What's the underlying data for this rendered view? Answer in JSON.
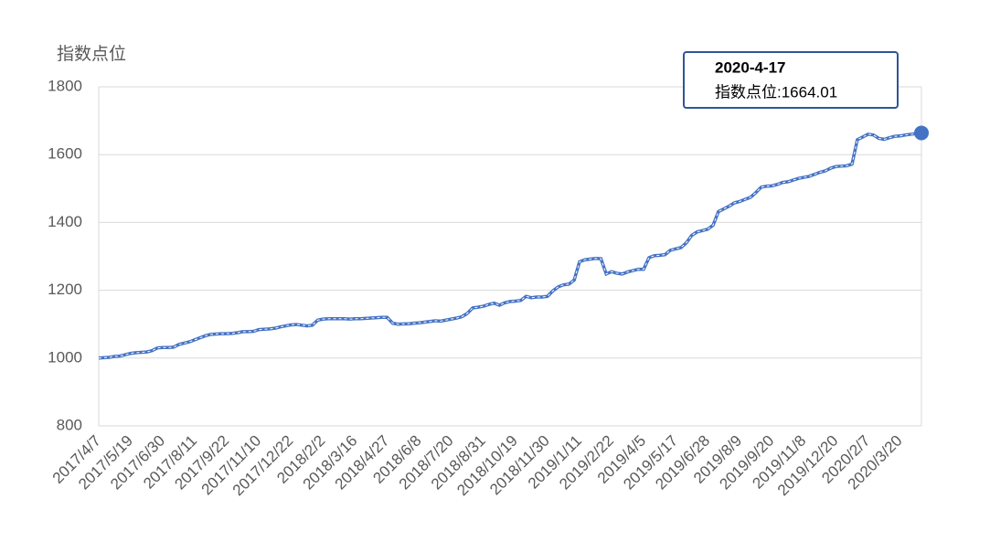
{
  "chart_data": {
    "type": "line",
    "y_axis_label": "指数点位",
    "categories": [
      "2017/4/7",
      null,
      null,
      null,
      null,
      null,
      "2017/5/19",
      null,
      null,
      null,
      null,
      null,
      "2017/6/30",
      null,
      null,
      null,
      null,
      null,
      "2017/8/11",
      null,
      null,
      null,
      null,
      null,
      "2017/9/22",
      null,
      null,
      null,
      null,
      null,
      "2017/11/10",
      null,
      null,
      null,
      null,
      null,
      "2017/12/22",
      null,
      null,
      null,
      null,
      null,
      "2018/2/2",
      null,
      null,
      null,
      null,
      null,
      "2018/3/16",
      null,
      null,
      null,
      null,
      null,
      "2018/4/27",
      null,
      null,
      null,
      null,
      null,
      "2018/6/8",
      null,
      null,
      null,
      null,
      null,
      "2018/7/20",
      null,
      null,
      null,
      null,
      null,
      "2018/8/31",
      null,
      null,
      null,
      null,
      null,
      "2018/10/19",
      null,
      null,
      null,
      null,
      null,
      "2018/11/30",
      null,
      null,
      null,
      null,
      null,
      "2019/1/11",
      null,
      null,
      null,
      null,
      null,
      "2019/2/22",
      null,
      null,
      null,
      null,
      null,
      "2019/4/5",
      null,
      null,
      null,
      null,
      null,
      "2019/5/17",
      null,
      null,
      null,
      null,
      null,
      "2019/6/28",
      null,
      null,
      null,
      null,
      null,
      "2019/8/9",
      null,
      null,
      null,
      null,
      null,
      "2019/9/20",
      null,
      null,
      null,
      null,
      null,
      "2019/11/8",
      null,
      null,
      null,
      null,
      null,
      "2019/12/20",
      null,
      null,
      null,
      null,
      null,
      "2020/2/7",
      null,
      null,
      null,
      null,
      null,
      "2020/3/20",
      null,
      null,
      null,
      null
    ],
    "series": [
      {
        "name": "指数点位",
        "color": "#4472c4",
        "values": [
          1000,
          1001,
          1002,
          1005,
          1006,
          1010,
          1014,
          1016,
          1017,
          1018,
          1022,
          1030,
          1031,
          1031,
          1032,
          1040,
          1044,
          1048,
          1054,
          1060,
          1066,
          1070,
          1071,
          1072,
          1072,
          1073,
          1075,
          1078,
          1078,
          1079,
          1084,
          1085,
          1086,
          1088,
          1092,
          1095,
          1098,
          1099,
          1097,
          1095,
          1097,
          1112,
          1115,
          1116,
          1116,
          1116,
          1116,
          1115,
          1116,
          1116,
          1117,
          1118,
          1119,
          1120,
          1120,
          1103,
          1100,
          1101,
          1101,
          1103,
          1104,
          1106,
          1108,
          1110,
          1109,
          1112,
          1115,
          1118,
          1122,
          1132,
          1148,
          1150,
          1153,
          1158,
          1162,
          1156,
          1163,
          1167,
          1168,
          1170,
          1182,
          1178,
          1180,
          1180,
          1182,
          1198,
          1210,
          1216,
          1218,
          1230,
          1284,
          1290,
          1292,
          1294,
          1293,
          1248,
          1255,
          1250,
          1248,
          1254,
          1258,
          1262,
          1262,
          1296,
          1302,
          1303,
          1305,
          1318,
          1322,
          1326,
          1340,
          1362,
          1372,
          1376,
          1380,
          1392,
          1432,
          1440,
          1448,
          1458,
          1462,
          1468,
          1474,
          1488,
          1504,
          1507,
          1508,
          1512,
          1518,
          1520,
          1525,
          1530,
          1533,
          1536,
          1542,
          1548,
          1552,
          1560,
          1565,
          1566,
          1567,
          1572,
          1644,
          1652,
          1660,
          1658,
          1648,
          1645,
          1650,
          1654,
          1655,
          1658,
          1660,
          1662,
          1664.01
        ]
      }
    ],
    "ylim": [
      800,
      1800
    ],
    "yticks": [
      800,
      1000,
      1200,
      1400,
      1600,
      1800
    ],
    "grid": true,
    "tooltip": {
      "title": "2020-4-17",
      "text": "指数点位:1664.01"
    }
  }
}
